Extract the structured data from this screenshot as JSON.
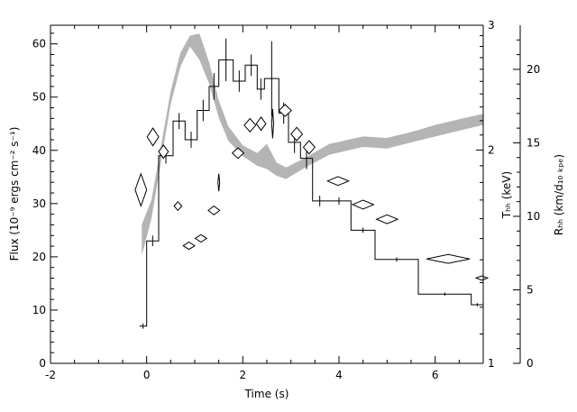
{
  "chart_data": {
    "type": "line",
    "title": "",
    "xlabel": "Time (s)",
    "ylabel_left": "Flux (10⁻⁹ ergs cm⁻² s⁻¹)",
    "ylabel_right_inner": "Tₕₕ (keV)",
    "ylabel_right_outer": "Rₕₕ (km/d₁₀ ₖₚₑ)",
    "xlim": [
      -2,
      7
    ],
    "ylim": [
      0,
      63.5
    ],
    "x_ticks": [
      "-2",
      "0",
      "2",
      "4",
      "6"
    ],
    "y_ticks": [
      "0",
      "10",
      "20",
      "30",
      "40",
      "50",
      "60"
    ],
    "temp_axis": {
      "scale": "log",
      "range": [
        1,
        3
      ],
      "ticks": [
        "1",
        "2",
        "3"
      ]
    },
    "radius_axis": {
      "range": [
        0,
        23
      ],
      "ticks": [
        "0",
        "5",
        "10",
        "15",
        "20"
      ]
    },
    "grid": false,
    "series": [
      {
        "name": "",
        "style": "step",
        "color": "#000000",
        "points": [
          {
            "x0": -0.15,
            "x1": 0.0,
            "y": 7.0,
            "err": 0.5
          },
          {
            "x0": 0.0,
            "x1": 0.25,
            "y": 23.0,
            "err": 1.0
          },
          {
            "x0": 0.25,
            "x1": 0.55,
            "y": 39.0,
            "err": 1.5
          },
          {
            "x0": 0.55,
            "x1": 0.8,
            "y": 45.5,
            "err": 1.5
          },
          {
            "x0": 0.8,
            "x1": 1.05,
            "y": 42.0,
            "err": 1.5
          },
          {
            "x0": 1.05,
            "x1": 1.3,
            "y": 47.5,
            "err": 2.0
          },
          {
            "x0": 1.3,
            "x1": 1.5,
            "y": 52.0,
            "err": 2.5
          },
          {
            "x0": 1.5,
            "x1": 1.8,
            "y": 57.0,
            "err": 4.0
          },
          {
            "x0": 1.8,
            "x1": 2.05,
            "y": 53.0,
            "err": 2.0
          },
          {
            "x0": 2.05,
            "x1": 2.3,
            "y": 56.0,
            "err": 2.0
          },
          {
            "x0": 2.3,
            "x1": 2.45,
            "y": 51.5,
            "err": 2.0
          },
          {
            "x0": 2.45,
            "x1": 2.75,
            "y": 53.5,
            "err": 7.0
          },
          {
            "x0": 2.75,
            "x1": 2.95,
            "y": 47.0,
            "err": 2.0
          },
          {
            "x0": 2.95,
            "x1": 3.2,
            "y": 41.5,
            "err": 2.0
          },
          {
            "x0": 3.2,
            "x1": 3.45,
            "y": 38.5,
            "err": 2.0
          },
          {
            "x0": 3.45,
            "x1": 3.75,
            "y": 30.5,
            "err": 1.0
          },
          {
            "x0": 3.75,
            "x1": 4.25,
            "y": 30.5,
            "err": 0.7
          },
          {
            "x0": 4.25,
            "x1": 4.75,
            "y": 25.0,
            "err": 0.5
          },
          {
            "x0": 4.75,
            "x1": 5.65,
            "y": 19.5,
            "err": 0.4
          },
          {
            "x0": 5.65,
            "x1": 6.75,
            "y": 13.0,
            "err": 0.3
          },
          {
            "x0": 6.75,
            "x1": 7.0,
            "y": 11.0,
            "err": 0.3
          }
        ]
      },
      {
        "name": "",
        "style": "band",
        "color": "#b4b4b4",
        "axis": "temperature",
        "points": [
          {
            "x": -0.1,
            "lo": 1.42,
            "hi": 1.57
          },
          {
            "x": 0.1,
            "lo": 1.6,
            "hi": 1.7
          },
          {
            "x": 0.3,
            "lo": 1.93,
            "hi": 2.03
          },
          {
            "x": 0.5,
            "lo": 2.32,
            "hi": 2.42
          },
          {
            "x": 0.7,
            "lo": 2.62,
            "hi": 2.74
          },
          {
            "x": 0.9,
            "lo": 2.8,
            "hi": 2.9
          },
          {
            "x": 1.1,
            "lo": 2.68,
            "hi": 2.92
          },
          {
            "x": 1.3,
            "lo": 2.48,
            "hi": 2.66
          },
          {
            "x": 1.5,
            "lo": 2.22,
            "hi": 2.35
          },
          {
            "x": 1.7,
            "lo": 2.06,
            "hi": 2.16
          },
          {
            "x": 2.0,
            "lo": 1.96,
            "hi": 2.03
          },
          {
            "x": 2.3,
            "lo": 1.9,
            "hi": 1.98
          },
          {
            "x": 2.5,
            "lo": 1.88,
            "hi": 2.04
          },
          {
            "x": 2.7,
            "lo": 1.84,
            "hi": 1.92
          },
          {
            "x": 2.9,
            "lo": 1.82,
            "hi": 1.89
          },
          {
            "x": 3.3,
            "lo": 1.89,
            "hi": 1.95
          },
          {
            "x": 3.8,
            "lo": 1.97,
            "hi": 2.04
          },
          {
            "x": 4.5,
            "lo": 2.02,
            "hi": 2.09
          },
          {
            "x": 5.0,
            "lo": 2.01,
            "hi": 2.08
          },
          {
            "x": 5.5,
            "lo": 2.05,
            "hi": 2.12
          },
          {
            "x": 6.0,
            "lo": 2.09,
            "hi": 2.17
          },
          {
            "x": 6.5,
            "lo": 2.13,
            "hi": 2.21
          },
          {
            "x": 7.0,
            "lo": 2.17,
            "hi": 2.25
          }
        ]
      },
      {
        "name": "",
        "style": "diamond",
        "color": "#000000",
        "axis": "radius",
        "points": [
          {
            "x": -0.12,
            "y": 11.8,
            "dx": 0.12,
            "dy": 1.1
          },
          {
            "x": 0.13,
            "y": 15.4,
            "dx": 0.12,
            "dy": 0.6
          },
          {
            "x": 0.35,
            "y": 14.4,
            "dx": 0.1,
            "dy": 0.45
          },
          {
            "x": 0.65,
            "y": 10.7,
            "dx": 0.08,
            "dy": 0.3
          },
          {
            "x": 0.88,
            "y": 8.0,
            "dx": 0.12,
            "dy": 0.25
          },
          {
            "x": 1.13,
            "y": 8.5,
            "dx": 0.12,
            "dy": 0.25
          },
          {
            "x": 1.4,
            "y": 10.4,
            "dx": 0.12,
            "dy": 0.3
          },
          {
            "x": 1.5,
            "y": 12.3,
            "dx": 0.01,
            "dy": 0.6
          },
          {
            "x": 1.9,
            "y": 14.3,
            "dx": 0.12,
            "dy": 0.35
          },
          {
            "x": 2.15,
            "y": 16.2,
            "dx": 0.12,
            "dy": 0.45
          },
          {
            "x": 2.38,
            "y": 16.3,
            "dx": 0.1,
            "dy": 0.45
          },
          {
            "x": 2.62,
            "y": 16.3,
            "dx": 0.02,
            "dy": 1.0
          },
          {
            "x": 2.88,
            "y": 17.2,
            "dx": 0.13,
            "dy": 0.4
          },
          {
            "x": 3.12,
            "y": 15.6,
            "dx": 0.12,
            "dy": 0.45
          },
          {
            "x": 3.38,
            "y": 14.7,
            "dx": 0.12,
            "dy": 0.45
          },
          {
            "x": 3.98,
            "y": 12.4,
            "dx": 0.22,
            "dy": 0.3
          },
          {
            "x": 4.5,
            "y": 10.8,
            "dx": 0.22,
            "dy": 0.3
          },
          {
            "x": 5.0,
            "y": 9.8,
            "dx": 0.22,
            "dy": 0.3
          },
          {
            "x": 6.27,
            "y": 7.1,
            "dx": 0.45,
            "dy": 0.3
          },
          {
            "x": 6.97,
            "y": 5.8,
            "dx": 0.12,
            "dy": 0.15
          }
        ]
      }
    ]
  }
}
